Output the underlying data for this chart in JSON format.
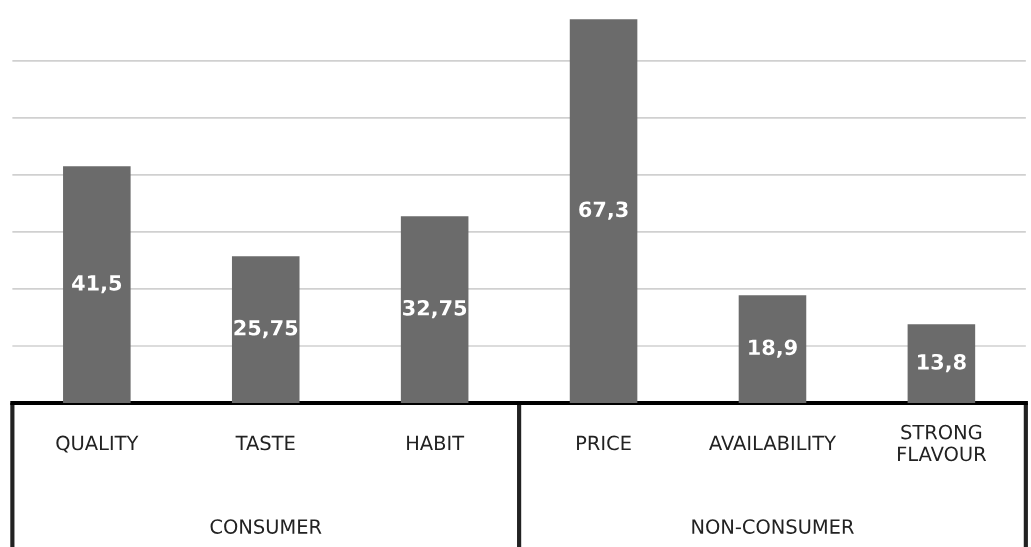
{
  "chart_data": {
    "type": "bar",
    "categories": [
      "QUALITY",
      "TASTE",
      "HABIT",
      "PRICE",
      "AVAILABILITY",
      "STRONG\nFLAVOUR"
    ],
    "values": [
      41.5,
      25.75,
      32.75,
      67.3,
      18.9,
      13.8
    ],
    "value_labels": [
      "41,5",
      "25,75",
      "32,75",
      "67,3",
      "18,9",
      "13,8"
    ],
    "color": "#6b6b6b",
    "yticks": [
      {
        "value": 10,
        "label": null
      },
      {
        "value": 20,
        "label": null
      },
      {
        "value": 30,
        "label": null
      },
      {
        "value": 40,
        "label": null
      },
      {
        "value": 50,
        "label": null
      },
      {
        "value": 60,
        "label": null
      }
    ],
    "grid": "y",
    "tick_labels": "x",
    "annotations": [
      "CONSUMER",
      "NON-CONSUMER"
    ]
  }
}
